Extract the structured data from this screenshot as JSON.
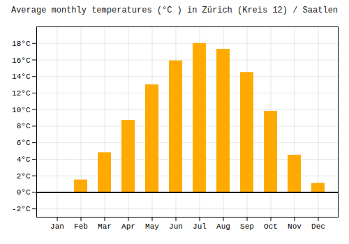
{
  "chart_data": {
    "type": "bar",
    "title": "Average monthly temperatures (°C ) in Zürich (Kreis 12) / Saatlen",
    "categories": [
      "Jan",
      "Feb",
      "Mar",
      "Apr",
      "May",
      "Jun",
      "Jul",
      "Aug",
      "Sep",
      "Oct",
      "Nov",
      "Dec"
    ],
    "values": [
      -0.1,
      1.5,
      4.8,
      8.7,
      13.0,
      15.9,
      18.0,
      17.3,
      14.5,
      9.8,
      4.5,
      1.1
    ],
    "color": "#FFAA00",
    "ylim": [
      -3.0,
      20.0
    ],
    "yticks": [
      {
        "value": -2,
        "label": "-2°C"
      },
      {
        "value": 0,
        "label": "0°C"
      },
      {
        "value": 2,
        "label": "2°C"
      },
      {
        "value": 4,
        "label": "4°C"
      },
      {
        "value": 6,
        "label": "6°C"
      },
      {
        "value": 8,
        "label": "8°C"
      },
      {
        "value": 10,
        "label": "10°C"
      },
      {
        "value": 12,
        "label": "12°C"
      },
      {
        "value": 14,
        "label": "14°C"
      },
      {
        "value": 16,
        "label": "16°C"
      },
      {
        "value": 18,
        "label": "18°C"
      }
    ],
    "grid": true
  }
}
